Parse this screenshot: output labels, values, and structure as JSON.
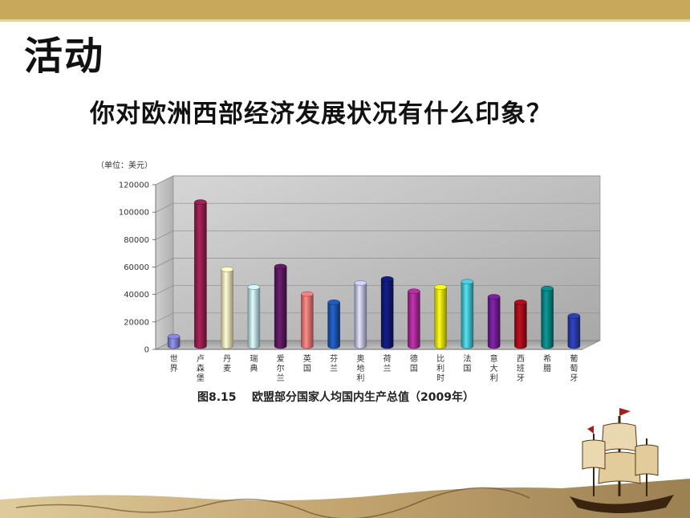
{
  "slide": {
    "heading": "活动",
    "question": "你对欧洲西部经济发展状况有什么印象？"
  },
  "chart_data": {
    "type": "bar",
    "unit_label": "（单位：美元）",
    "caption": "图8.15    欧盟部分国家人均国内生产总值（2009年）",
    "ylim": [
      0,
      120000
    ],
    "yticks": [
      "0",
      "20000",
      "40000",
      "60000",
      "80000",
      "100000",
      "120000"
    ],
    "grid": true,
    "categories": [
      "世界",
      "卢森堡",
      "丹麦",
      "瑞典",
      "爱尔兰",
      "英国",
      "芬兰",
      "奥地利",
      "荷兰",
      "德国",
      "比利时",
      "法国",
      "意大利",
      "西班牙",
      "希腊",
      "葡萄牙"
    ],
    "values": [
      7000,
      105000,
      56000,
      43000,
      58000,
      38000,
      32000,
      46000,
      49000,
      40000,
      43000,
      47000,
      36000,
      32000,
      42000,
      22000
    ],
    "colors": [
      "#7878c8",
      "#8c1c4a",
      "#f4eab0",
      "#b4dce4",
      "#581858",
      "#e87070",
      "#1c50a8",
      "#b8b8e0",
      "#101870",
      "#a02890",
      "#e8e010",
      "#40b8c4",
      "#6c1c8c",
      "#9c0c18",
      "#087c7c",
      "#2838a0"
    ]
  }
}
